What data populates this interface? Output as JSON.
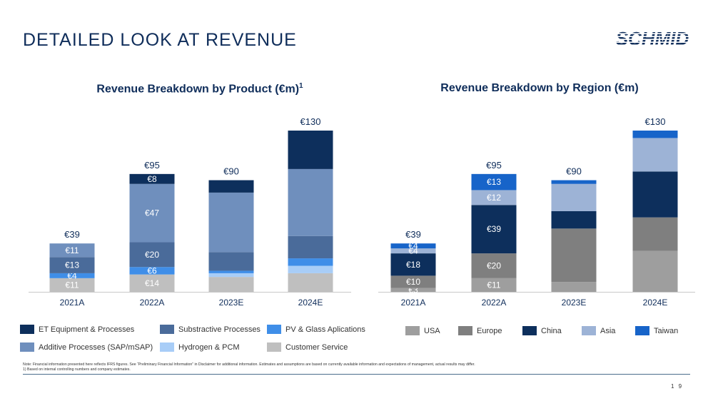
{
  "slide": {
    "title": "DETAILED LOOK AT REVENUE",
    "logo_text": "SCHMID",
    "page_number": "1 9",
    "footnote_line1": "Note: Financial information presented here reflects IFRS figures. See “Preliminary Financial Information” in Disclaimer for additional information. Estimates and assumptions are based on currently available information and expectations of management, actual results may differ.",
    "footnote_line2": "1) Based on internal controlling numbers and company estimates."
  },
  "colors": {
    "title": "#0f2d5a",
    "et_equipment": "#0d2f5c",
    "substractive": "#4a6b9a",
    "pv_glass": "#3f8ee8",
    "additive": "#6f8fbd",
    "hydrogen": "#a8cdf7",
    "customer_service": "#bfbfbf",
    "usa": "#9e9e9e",
    "europe": "#7f7f7f",
    "china": "#0d2f5c",
    "asia": "#9db3d6",
    "taiwan": "#1764c9"
  },
  "chart_data": [
    {
      "type": "bar",
      "stacked": true,
      "title": "Revenue Breakdown by Product (€m)",
      "title_sup": "1",
      "categories": [
        "2021A",
        "2022A",
        "2023E",
        "2024E"
      ],
      "totals": [
        39,
        95,
        90,
        130
      ],
      "total_labels": [
        "€39",
        "€95",
        "€90",
        "€130"
      ],
      "ylim": [
        0,
        130
      ],
      "series": [
        {
          "name": "Customer Service",
          "color_key": "customer_service",
          "values": [
            11,
            14,
            12,
            15
          ],
          "labels": [
            "€11",
            "€14",
            "",
            ""
          ]
        },
        {
          "name": "Hydrogen & PCM",
          "color_key": "hydrogen",
          "values": [
            0,
            0,
            3,
            6
          ],
          "labels": [
            "",
            "",
            "",
            ""
          ]
        },
        {
          "name": "PV & Glass Aplications",
          "color_key": "pv_glass",
          "values": [
            4,
            6,
            2,
            6
          ],
          "labels": [
            "€4",
            "€6",
            "",
            ""
          ]
        },
        {
          "name": "Substractive Processes",
          "color_key": "substractive",
          "values": [
            13,
            20,
            15,
            18
          ],
          "labels": [
            "€13",
            "€20",
            "",
            ""
          ]
        },
        {
          "name": "Additive Processes (SAP/mSAP)",
          "color_key": "additive",
          "values": [
            11,
            47,
            48,
            54
          ],
          "labels": [
            "€11",
            "€47",
            "",
            ""
          ]
        },
        {
          "name": "ET Equipment & Processes",
          "color_key": "et_equipment",
          "values": [
            0,
            8,
            10,
            31
          ],
          "labels": [
            "",
            "€8",
            "",
            ""
          ]
        }
      ],
      "legend": [
        "ET Equipment & Processes",
        "Substractive Processes",
        "PV & Glass Aplications",
        "Additive Processes (SAP/mSAP)",
        "Hydrogen & PCM",
        "Customer Service"
      ]
    },
    {
      "type": "bar",
      "stacked": true,
      "title": "Revenue Breakdown by Region (€m)",
      "categories": [
        "2021A",
        "2022A",
        "2023E",
        "2024E"
      ],
      "totals": [
        39,
        95,
        90,
        130
      ],
      "total_labels": [
        "€39",
        "€95",
        "€90",
        "€130"
      ],
      "ylim": [
        0,
        130
      ],
      "series": [
        {
          "name": "USA",
          "color_key": "usa",
          "values": [
            3,
            11,
            8,
            33
          ],
          "labels": [
            "€3",
            "€11",
            "",
            ""
          ]
        },
        {
          "name": "Europe",
          "color_key": "europe",
          "values": [
            10,
            20,
            43,
            27
          ],
          "labels": [
            "€10",
            "€20",
            "",
            ""
          ]
        },
        {
          "name": "China",
          "color_key": "china",
          "values": [
            18,
            39,
            14,
            37
          ],
          "labels": [
            "€18",
            "€39",
            "",
            ""
          ]
        },
        {
          "name": "Asia",
          "color_key": "asia",
          "values": [
            4,
            12,
            22,
            27
          ],
          "labels": [
            "€4",
            "€12",
            "",
            ""
          ]
        },
        {
          "name": "Taiwan",
          "color_key": "taiwan",
          "values": [
            4,
            13,
            3,
            6
          ],
          "labels": [
            "€4",
            "€13",
            "",
            ""
          ]
        }
      ],
      "legend": [
        "USA",
        "Europe",
        "China",
        "Asia",
        "Taiwan"
      ]
    }
  ]
}
